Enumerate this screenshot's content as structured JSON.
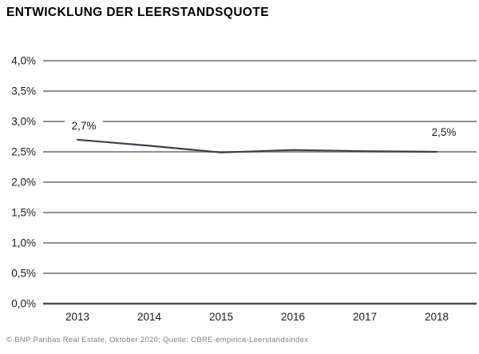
{
  "title": "ENTWICKLUNG DER LEERSTANDSQUOTE",
  "footer": "© BNP Paribas Real Estate, Oktober 2020; Quelle: CBRE-empirica-Leerstandsindex",
  "chart_data": {
    "type": "line",
    "title": "ENTWICKLUNG DER LEERSTANDSQUOTE",
    "categories": [
      "2013",
      "2014",
      "2015",
      "2016",
      "2017",
      "2018"
    ],
    "values": [
      2.7,
      2.6,
      2.49,
      2.53,
      2.51,
      2.5
    ],
    "xlabel": "",
    "ylabel": "",
    "ylim": [
      0,
      4
    ],
    "y_tick_step": 0.5,
    "y_tick_labels": [
      "0,0%",
      "0,5%",
      "1,0%",
      "1,5%",
      "2,0%",
      "2,5%",
      "3,0%",
      "3,5%",
      "4,0%"
    ],
    "annotations": [
      {
        "category": "2013",
        "text": "2,7%"
      },
      {
        "category": "2018",
        "text": "2,5%"
      }
    ],
    "grid": true,
    "legend": false,
    "colors": {
      "line": "#3a434c",
      "grid": "#919191",
      "axis": "#4d4d4d",
      "tick_label": "#1c1c1c",
      "footer_text": "#808080"
    }
  }
}
